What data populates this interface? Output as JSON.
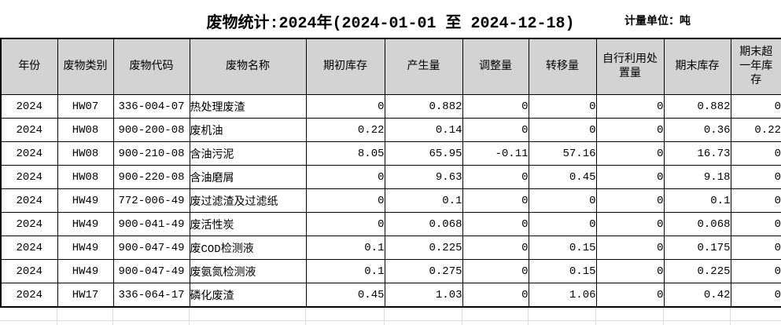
{
  "header": {
    "title": "废物统计:2024年(2024-01-01 至 2024-12-18)",
    "unit_label": "计量单位：吨"
  },
  "table": {
    "columns": [
      "年份",
      "废物类别",
      "废物代码",
      "废物名称",
      "期初库存",
      "产生量",
      "调整量",
      "转移量",
      "自行利用处置量",
      "期末库存",
      "期末超一年库存"
    ],
    "rows": [
      [
        "2024",
        "HW07",
        "336-004-07",
        "热处理废渣",
        "0",
        "0.882",
        "0",
        "0",
        "0",
        "0.882",
        "0"
      ],
      [
        "2024",
        "HW08",
        "900-200-08",
        "废机油",
        "0.22",
        "0.14",
        "0",
        "0",
        "0",
        "0.36",
        "0.22"
      ],
      [
        "2024",
        "HW08",
        "900-210-08",
        "含油污泥",
        "8.05",
        "65.95",
        "-0.11",
        "57.16",
        "0",
        "16.73",
        "0"
      ],
      [
        "2024",
        "HW08",
        "900-220-08",
        "含油磨屑",
        "0",
        "9.63",
        "0",
        "0.45",
        "0",
        "9.18",
        "0"
      ],
      [
        "2024",
        "HW49",
        "772-006-49",
        "废过滤渣及过滤纸",
        "0",
        "0.1",
        "0",
        "0",
        "0",
        "0.1",
        "0"
      ],
      [
        "2024",
        "HW49",
        "900-041-49",
        "废活性炭",
        "0",
        "0.068",
        "0",
        "0",
        "0",
        "0.068",
        "0"
      ],
      [
        "2024",
        "HW49",
        "900-047-49",
        "废COD检测液",
        "0.1",
        "0.225",
        "0",
        "0.15",
        "0",
        "0.175",
        "0"
      ],
      [
        "2024",
        "HW49",
        "900-047-49",
        "废氨氮检测液",
        "0.1",
        "0.275",
        "0",
        "0.15",
        "0",
        "0.225",
        "0"
      ],
      [
        "2024",
        "HW17",
        "336-064-17",
        "磷化废渣",
        "0.45",
        "1.03",
        "0",
        "1.06",
        "0",
        "0.42",
        "0"
      ]
    ]
  },
  "colors": {
    "header_bg": "#d3d3d3",
    "border": "#000000",
    "faint_grid": "#dcdcdc",
    "text": "#000000",
    "background": "#ffffff"
  }
}
